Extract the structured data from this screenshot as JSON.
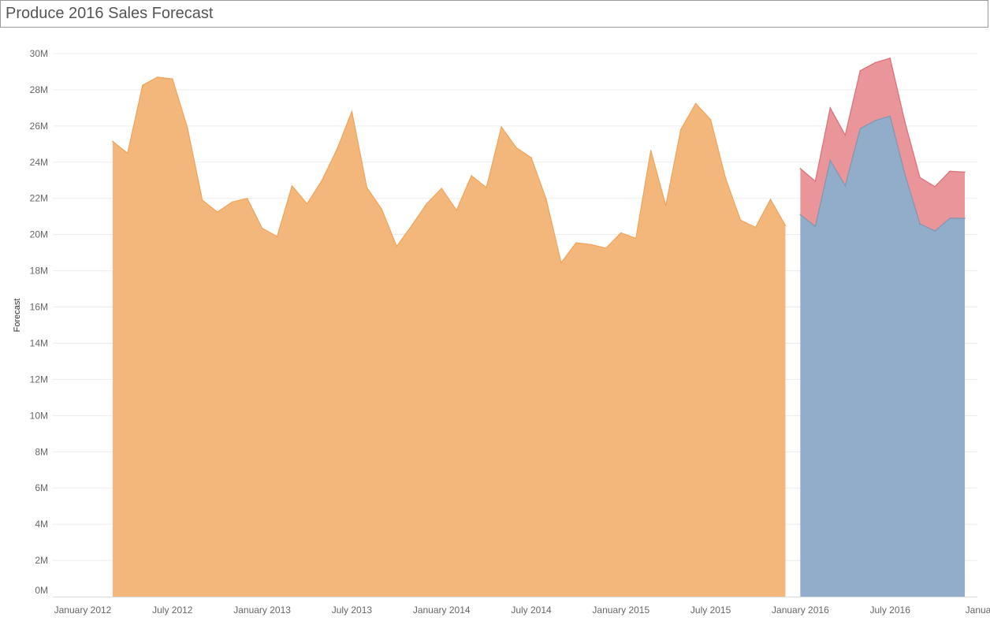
{
  "header": {
    "title": "Produce 2016 Sales Forecast"
  },
  "chart_data": {
    "type": "area",
    "title": "Produce 2016 Sales Forecast",
    "ylabel": "Forecast",
    "xlabel": "",
    "ylim": [
      0,
      30000000
    ],
    "xlim": [
      "2011-11",
      "2017-01"
    ],
    "grid": true,
    "legend": "none",
    "y_ticks": [
      "0M",
      "2M",
      "4M",
      "6M",
      "8M",
      "10M",
      "12M",
      "14M",
      "16M",
      "18M",
      "20M",
      "22M",
      "24M",
      "26M",
      "28M",
      "30M"
    ],
    "x_ticks": [
      {
        "label": "January 2012",
        "date": "2012-01"
      },
      {
        "label": "July 2012",
        "date": "2012-07"
      },
      {
        "label": "January 2013",
        "date": "2013-01"
      },
      {
        "label": "July 2013",
        "date": "2013-07"
      },
      {
        "label": "January 2014",
        "date": "2014-01"
      },
      {
        "label": "July 2014",
        "date": "2014-07"
      },
      {
        "label": "January 2015",
        "date": "2015-01"
      },
      {
        "label": "July 2015",
        "date": "2015-07"
      },
      {
        "label": "January 2016",
        "date": "2016-01"
      },
      {
        "label": "July 2016",
        "date": "2016-07"
      },
      {
        "label": "Januar",
        "date": "2017-01"
      }
    ],
    "series": [
      {
        "color": "#f4b77b",
        "stroke": "#f0a35a",
        "x": [
          "2012-03",
          "2012-04",
          "2012-05",
          "2012-06",
          "2012-07",
          "2012-08",
          "2012-09",
          "2012-10",
          "2012-11",
          "2012-12",
          "2013-01",
          "2013-02",
          "2013-03",
          "2013-04",
          "2013-05",
          "2013-06",
          "2013-07",
          "2013-08",
          "2013-09",
          "2013-10",
          "2013-11",
          "2013-12",
          "2014-01",
          "2014-02",
          "2014-03",
          "2014-04",
          "2014-05",
          "2014-06",
          "2014-07",
          "2014-08",
          "2014-09",
          "2014-10",
          "2014-11",
          "2014-12",
          "2015-01",
          "2015-02",
          "2015-03",
          "2015-04",
          "2015-05",
          "2015-06",
          "2015-07",
          "2015-08",
          "2015-09",
          "2015-10",
          "2015-11",
          "2015-12"
        ],
        "values": [
          25150000,
          24500000,
          28250000,
          28700000,
          28600000,
          25900000,
          21900000,
          21250000,
          21800000,
          22000000,
          20350000,
          19900000,
          22700000,
          21700000,
          23000000,
          24700000,
          26800000,
          22600000,
          21400000,
          19350000,
          20500000,
          21700000,
          22550000,
          21350000,
          23250000,
          22600000,
          25950000,
          24800000,
          24250000,
          21950000,
          18450000,
          19550000,
          19450000,
          19250000,
          20100000,
          19800000,
          24650000,
          21600000,
          25800000,
          27250000,
          26350000,
          23100000,
          20800000,
          20400000,
          21950000,
          20500000
        ]
      },
      {
        "color": "#e9959a",
        "stroke": "#d9707a",
        "x": [
          "2016-01",
          "2016-02",
          "2016-03",
          "2016-04",
          "2016-05",
          "2016-06",
          "2016-07",
          "2016-08",
          "2016-09",
          "2016-10",
          "2016-11",
          "2016-12"
        ],
        "values": [
          23650000,
          22950000,
          27000000,
          25500000,
          29050000,
          29500000,
          29750000,
          26200000,
          23150000,
          22650000,
          23500000,
          23450000
        ]
      },
      {
        "color": "#92adc9",
        "stroke": "#7e97b3",
        "x": [
          "2016-01",
          "2016-02",
          "2016-03",
          "2016-04",
          "2016-05",
          "2016-06",
          "2016-07",
          "2016-08",
          "2016-09",
          "2016-10",
          "2016-11",
          "2016-12"
        ],
        "values": [
          21100000,
          20450000,
          24100000,
          22700000,
          25850000,
          26300000,
          26550000,
          23300000,
          20600000,
          20200000,
          20900000,
          20900000
        ]
      }
    ]
  }
}
